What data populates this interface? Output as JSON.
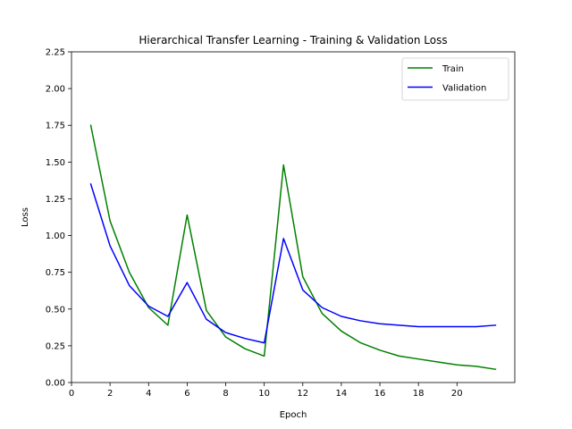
{
  "chart_data": {
    "type": "line",
    "title": "Hierarchical Transfer Learning - Training & Validation Loss",
    "xlabel": "Epoch",
    "ylabel": "Loss",
    "xlim": [
      0,
      23
    ],
    "ylim": [
      0,
      2.25
    ],
    "xticks": [
      0,
      2,
      4,
      6,
      8,
      10,
      12,
      14,
      16,
      18,
      20
    ],
    "yticks": [
      0.0,
      0.25,
      0.5,
      0.75,
      1.0,
      1.25,
      1.5,
      1.75,
      2.0,
      2.25
    ],
    "xtick_labels": [
      "0",
      "2",
      "4",
      "6",
      "8",
      "10",
      "12",
      "14",
      "16",
      "18",
      "20"
    ],
    "ytick_labels": [
      "0.00",
      "0.25",
      "0.50",
      "0.75",
      "1.00",
      "1.25",
      "1.50",
      "1.75",
      "2.00",
      "2.25"
    ],
    "grid": false,
    "legend_position": "top-right",
    "x": [
      1,
      2,
      3,
      4,
      5,
      6,
      7,
      8,
      9,
      10,
      11,
      12,
      13,
      14,
      15,
      16,
      17,
      18,
      19,
      20,
      21,
      22
    ],
    "series": [
      {
        "name": "Train",
        "color": "#008000",
        "values": [
          1.75,
          1.1,
          0.75,
          0.51,
          0.39,
          1.14,
          0.49,
          0.31,
          0.23,
          0.18,
          1.48,
          0.72,
          0.47,
          0.35,
          0.27,
          0.22,
          0.18,
          0.16,
          0.14,
          0.12,
          0.11,
          0.09
        ]
      },
      {
        "name": "Validation",
        "color": "#0000ff",
        "values": [
          1.35,
          0.93,
          0.66,
          0.52,
          0.45,
          0.68,
          0.43,
          0.34,
          0.3,
          0.27,
          0.98,
          0.63,
          0.51,
          0.45,
          0.42,
          0.4,
          0.39,
          0.38,
          0.38,
          0.38,
          0.38,
          0.39
        ]
      }
    ]
  }
}
